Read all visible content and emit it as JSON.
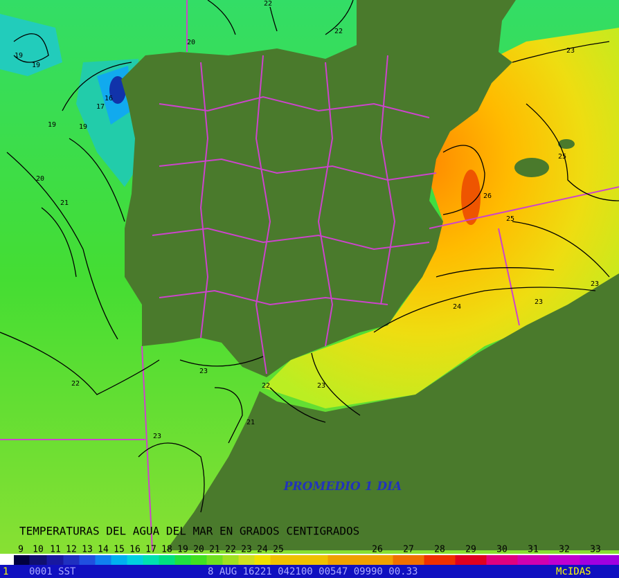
{
  "map": {
    "annotation": "PROMEDIO 1 DIA",
    "title": "TEMPERATURAS DEL AGUA DEL MAR EN GRADOS CENTIGRADOS",
    "contour_labels": [
      "22",
      "22",
      "20",
      "19",
      "19",
      "16",
      "17",
      "19",
      "19",
      "20",
      "21",
      "23",
      "25",
      "26",
      "25",
      "23",
      "23",
      "24",
      "23",
      "22",
      "23",
      "22",
      "21",
      "23"
    ],
    "scale_labels": [
      "9",
      "10",
      "11",
      "12",
      "13",
      "14",
      "15",
      "16",
      "17",
      "18",
      "19",
      "20",
      "21",
      "22",
      "23",
      "24",
      "25",
      "26",
      "27",
      "28",
      "29",
      "30",
      "31",
      "32",
      "33"
    ]
  },
  "status_bar": {
    "frame": "1",
    "product": "0001 SST",
    "info": "8 AUG 16221 042100 00547 09990 00.33",
    "brand": "McIDAS"
  }
}
